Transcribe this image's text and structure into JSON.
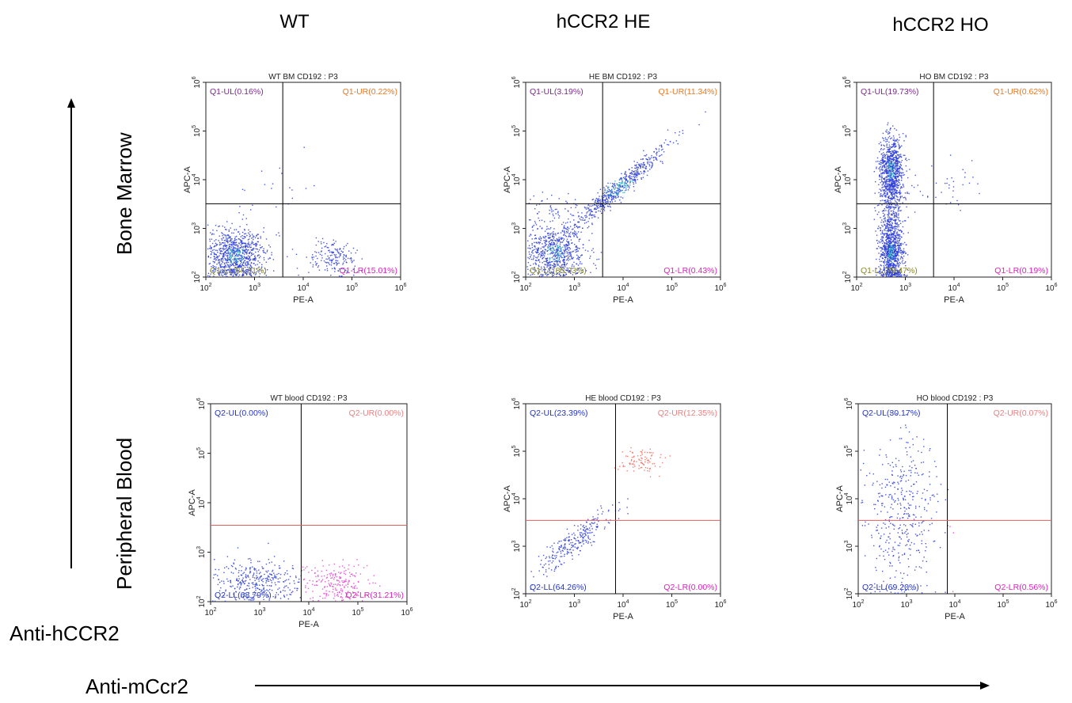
{
  "headers": {
    "columns": [
      "WT",
      "hCCR2  HE",
      "hCCR2  HO"
    ],
    "rows": [
      "Bone Marrow",
      "Peripheral  Blood"
    ]
  },
  "axis_names": {
    "vertical": "Anti-hCCR2",
    "horizontal": "Anti-mCcr2"
  },
  "colors": {
    "q1_ul": "#7a2a8a",
    "q1_ur": "#f07820",
    "q1_ll": "#8a8a2a",
    "q1_lr": "#e020c0",
    "q2_ul": "#2233cc",
    "q2_ur": "#f08080",
    "q2_ll": "#2233cc",
    "q2_lr": "#e020c0",
    "bm_gate": "#000000",
    "pb_gate": "#e06060",
    "pb_vline": "#000000",
    "dots_blue": "#2a3bd8",
    "dots_pink": "#e840d0",
    "dots_salmon": "#f06a5a"
  },
  "chart_data": [
    {
      "type": "scatter",
      "title": "WT BM CD192 : P3",
      "xlabel": "PE-A",
      "ylabel": "APC-A",
      "log_scale": true,
      "xlim": [
        100,
        1000000
      ],
      "ylim": [
        100,
        1000000
      ],
      "x_ticks": [
        "10^2",
        "10^3",
        "10^4",
        "10^5",
        "10^6"
      ],
      "y_ticks": [
        "10^2",
        "10^3",
        "10^4",
        "10^5",
        "10^6"
      ],
      "gate": {
        "x": 3800,
        "y": 3200
      },
      "quadrants": [
        {
          "label": "Q1-UL(0.16%)",
          "name": "Q1-UL",
          "percent": 0.16,
          "position": "top-left",
          "color_key": "q1_ul"
        },
        {
          "label": "Q1-UR(0.22%)",
          "name": "Q1-UR",
          "percent": 0.22,
          "position": "top-right",
          "color_key": "q1_ur"
        },
        {
          "label": "Q1-LL(84.61%)",
          "name": "Q1-LL",
          "percent": 84.61,
          "position": "bottom-left",
          "color_key": "q1_ll"
        },
        {
          "label": "Q1-LR(15.01%)",
          "name": "Q1-LR",
          "percent": 15.01,
          "position": "bottom-right",
          "color_key": "q1_lr"
        }
      ]
    },
    {
      "type": "scatter",
      "title": "HE BM CD192 : P3",
      "xlabel": "PE-A",
      "ylabel": "APC-A",
      "log_scale": true,
      "xlim": [
        100,
        1000000
      ],
      "ylim": [
        100,
        1000000
      ],
      "x_ticks": [
        "10^2",
        "10^3",
        "10^4",
        "10^5",
        "10^6"
      ],
      "y_ticks": [
        "10^2",
        "10^3",
        "10^4",
        "10^5",
        "10^6"
      ],
      "gate": {
        "x": 3800,
        "y": 3200
      },
      "quadrants": [
        {
          "label": "Q1-UL(3.19%)",
          "name": "Q1-UL",
          "percent": 3.19,
          "position": "top-left",
          "color_key": "q1_ul"
        },
        {
          "label": "Q1-UR(11.34%)",
          "name": "Q1-UR",
          "percent": 11.34,
          "position": "top-right",
          "color_key": "q1_ur"
        },
        {
          "label": "Q1-LL(85.03%)",
          "name": "Q1-LL",
          "percent": 85.03,
          "position": "bottom-left",
          "color_key": "q1_ll"
        },
        {
          "label": "Q1-LR(0.43%)",
          "name": "Q1-LR",
          "percent": 0.43,
          "position": "bottom-right",
          "color_key": "q1_lr"
        }
      ]
    },
    {
      "type": "scatter",
      "title": "HO BM CD192 : P3",
      "xlabel": "PE-A",
      "ylabel": "APC-A",
      "log_scale": true,
      "xlim": [
        100,
        1000000
      ],
      "ylim": [
        100,
        1000000
      ],
      "x_ticks": [
        "10^2",
        "10^3",
        "10^4",
        "10^5",
        "10^6"
      ],
      "y_ticks": [
        "10^2",
        "10^3",
        "10^4",
        "10^5",
        "10^6"
      ],
      "gate": {
        "x": 3800,
        "y": 3200
      },
      "quadrants": [
        {
          "label": "Q1-UL(19.73%)",
          "name": "Q1-UL",
          "percent": 19.73,
          "position": "top-left",
          "color_key": "q1_ul"
        },
        {
          "label": "Q1-UR(0.62%)",
          "name": "Q1-UR",
          "percent": 0.62,
          "position": "top-right",
          "color_key": "q1_ur"
        },
        {
          "label": "Q1-LL(79.47%)",
          "name": "Q1-LL",
          "percent": 79.47,
          "position": "bottom-left",
          "color_key": "q1_ll"
        },
        {
          "label": "Q1-LR(0.19%)",
          "name": "Q1-LR",
          "percent": 0.19,
          "position": "bottom-right",
          "color_key": "q1_lr"
        }
      ]
    },
    {
      "type": "scatter",
      "title": "WT blood CD192 : P3",
      "xlabel": "PE-A",
      "ylabel": "APC-A",
      "log_scale": true,
      "xlim": [
        100,
        1000000
      ],
      "ylim": [
        100,
        1000000
      ],
      "x_ticks": [
        "10^2",
        "10^3",
        "10^4",
        "10^5",
        "10^6"
      ],
      "y_ticks": [
        "10^2",
        "10^3",
        "10^4",
        "10^5",
        "10^6"
      ],
      "gate": {
        "x": 7000,
        "y": 3500
      },
      "quadrants": [
        {
          "label": "Q2-UL(0.00%)",
          "name": "Q2-UL",
          "percent": 0.0,
          "position": "top-left",
          "color_key": "q2_ul"
        },
        {
          "label": "Q2-UR(0.00%)",
          "name": "Q2-UR",
          "percent": 0.0,
          "position": "top-right",
          "color_key": "q2_ur"
        },
        {
          "label": "Q2-LL(68.79%)",
          "name": "Q2-LL",
          "percent": 68.79,
          "position": "bottom-left",
          "color_key": "q2_ll"
        },
        {
          "label": "Q2-LR(31.21%)",
          "name": "Q2-LR",
          "percent": 31.21,
          "position": "bottom-right",
          "color_key": "q2_lr"
        }
      ]
    },
    {
      "type": "scatter",
      "title": "HE blood CD192 : P3",
      "xlabel": "PE-A",
      "ylabel": "APC-A",
      "log_scale": true,
      "xlim": [
        100,
        1000000
      ],
      "ylim": [
        100,
        1000000
      ],
      "x_ticks": [
        "10^2",
        "10^3",
        "10^4",
        "10^5",
        "10^6"
      ],
      "y_ticks": [
        "10^2",
        "10^3",
        "10^4",
        "10^5",
        "10^6"
      ],
      "gate": {
        "x": 7000,
        "y": 3500
      },
      "quadrants": [
        {
          "label": "Q2-UL(23.39%)",
          "name": "Q2-UL",
          "percent": 23.39,
          "position": "top-left",
          "color_key": "q2_ul"
        },
        {
          "label": "Q2-UR(12.35%)",
          "name": "Q2-UR",
          "percent": 12.35,
          "position": "top-right",
          "color_key": "q2_ur"
        },
        {
          "label": "Q2-LL(64.26%)",
          "name": "Q2-LL",
          "percent": 64.26,
          "position": "bottom-left",
          "color_key": "q2_ll"
        },
        {
          "label": "Q2-LR(0.00%)",
          "name": "Q2-LR",
          "percent": 0.0,
          "position": "bottom-right",
          "color_key": "q2_lr"
        }
      ]
    },
    {
      "type": "scatter",
      "title": "HO blood CD192 : P3",
      "xlabel": "PE-A",
      "ylabel": "APC-A",
      "log_scale": true,
      "xlim": [
        100,
        1000000
      ],
      "ylim": [
        100,
        1000000
      ],
      "x_ticks": [
        "10^2",
        "10^3",
        "10^4",
        "10^5",
        "10^6"
      ],
      "y_ticks": [
        "10^2",
        "10^3",
        "10^4",
        "10^5",
        "10^6"
      ],
      "gate": {
        "x": 7000,
        "y": 3500
      },
      "quadrants": [
        {
          "label": "Q2-UL(30.17%)",
          "name": "Q2-UL",
          "percent": 30.17,
          "position": "top-left",
          "color_key": "q2_ul"
        },
        {
          "label": "Q2-UR(0.07%)",
          "name": "Q2-UR",
          "percent": 0.07,
          "position": "top-right",
          "color_key": "q2_ur"
        },
        {
          "label": "Q2-LL(69.20%)",
          "name": "Q2-LL",
          "percent": 69.2,
          "position": "bottom-left",
          "color_key": "q2_ll"
        },
        {
          "label": "Q2-LR(0.56%)",
          "name": "Q2-LR",
          "percent": 0.56,
          "position": "bottom-right",
          "color_key": "q2_lr"
        }
      ]
    }
  ]
}
